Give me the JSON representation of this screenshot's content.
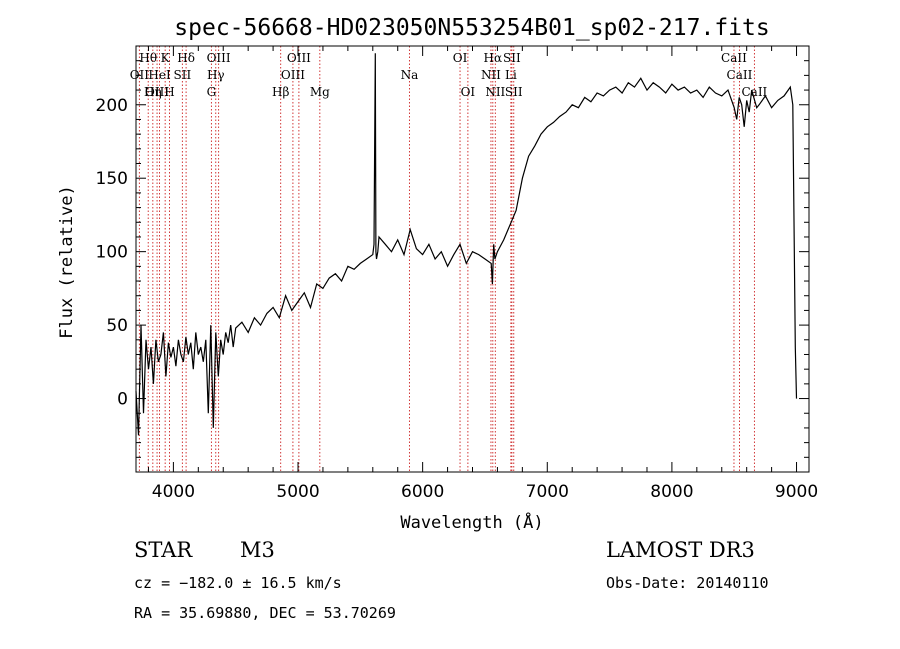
{
  "chart_data": {
    "type": "line",
    "title": "spec-56668-HD023050N553254B01_sp02-217.fits",
    "xlabel": "Wavelength (Å)",
    "ylabel": "Flux (relative)",
    "xlim": [
      3700,
      9100
    ],
    "ylim": [
      -50,
      240
    ],
    "xticks": [
      4000,
      5000,
      6000,
      7000,
      8000,
      9000
    ],
    "yticks": [
      0,
      50,
      100,
      150,
      200
    ],
    "series": [
      {
        "name": "flux",
        "x": [
          3700,
          3720,
          3740,
          3760,
          3780,
          3800,
          3820,
          3840,
          3860,
          3880,
          3900,
          3920,
          3940,
          3960,
          3980,
          4000,
          4020,
          4040,
          4060,
          4080,
          4100,
          4120,
          4140,
          4160,
          4180,
          4200,
          4220,
          4240,
          4260,
          4280,
          4300,
          4320,
          4340,
          4360,
          4380,
          4400,
          4420,
          4440,
          4460,
          4480,
          4500,
          4550,
          4600,
          4650,
          4700,
          4750,
          4800,
          4850,
          4900,
          4950,
          5000,
          5050,
          5100,
          5150,
          5200,
          5250,
          5300,
          5350,
          5400,
          5450,
          5500,
          5550,
          5600,
          5610,
          5620,
          5625,
          5630,
          5640,
          5650,
          5700,
          5750,
          5800,
          5850,
          5900,
          5950,
          6000,
          6050,
          6100,
          6150,
          6200,
          6250,
          6300,
          6350,
          6400,
          6450,
          6500,
          6550,
          6560,
          6570,
          6580,
          6600,
          6650,
          6700,
          6750,
          6800,
          6850,
          6900,
          6950,
          7000,
          7050,
          7100,
          7150,
          7200,
          7250,
          7300,
          7350,
          7400,
          7450,
          7500,
          7550,
          7600,
          7650,
          7700,
          7750,
          7800,
          7850,
          7900,
          7950,
          8000,
          8050,
          8100,
          8150,
          8200,
          8250,
          8300,
          8350,
          8400,
          8450,
          8500,
          8520,
          8540,
          8560,
          8580,
          8600,
          8620,
          8640,
          8660,
          8680,
          8700,
          8750,
          8800,
          8850,
          8900,
          8950,
          8970,
          8990,
          9000
        ],
        "y": [
          5,
          -25,
          50,
          -10,
          40,
          20,
          35,
          10,
          40,
          25,
          30,
          45,
          15,
          38,
          28,
          35,
          22,
          40,
          30,
          25,
          42,
          30,
          38,
          20,
          45,
          30,
          35,
          25,
          40,
          -10,
          50,
          -20,
          45,
          15,
          40,
          30,
          45,
          38,
          50,
          35,
          48,
          52,
          45,
          55,
          50,
          58,
          62,
          55,
          70,
          60,
          66,
          72,
          62,
          78,
          75,
          82,
          85,
          80,
          90,
          88,
          92,
          95,
          98,
          105,
          235,
          100,
          95,
          100,
          110,
          105,
          100,
          108,
          98,
          115,
          102,
          98,
          105,
          95,
          100,
          90,
          98,
          105,
          92,
          100,
          98,
          95,
          92,
          78,
          105,
          95,
          100,
          108,
          118,
          128,
          150,
          165,
          172,
          180,
          185,
          188,
          192,
          195,
          200,
          198,
          205,
          202,
          208,
          206,
          210,
          212,
          208,
          215,
          212,
          218,
          210,
          215,
          212,
          208,
          214,
          210,
          212,
          208,
          210,
          205,
          212,
          208,
          206,
          210,
          198,
          190,
          205,
          200,
          185,
          203,
          195,
          210,
          204,
          198,
          200,
          206,
          198,
          203,
          206,
          212,
          200,
          35,
          0
        ]
      }
    ],
    "spectral_lines": [
      {
        "label": "Hθ",
        "x": 3798,
        "row": 1
      },
      {
        "label": "OII",
        "x": 3727,
        "row": 2
      },
      {
        "label": "OIII",
        "x": 3869,
        "row": 3
      },
      {
        "label": "K",
        "x": 3934,
        "row": 1
      },
      {
        "label": "HeI",
        "x": 3889,
        "row": 2
      },
      {
        "label": "Hη",
        "x": 3835,
        "row": 3
      },
      {
        "label": "H",
        "x": 3969,
        "row": 3
      },
      {
        "label": "Hδ",
        "x": 4102,
        "row": 1
      },
      {
        "label": "SII",
        "x": 4072,
        "row": 2
      },
      {
        "label": "OIII",
        "x": 4363,
        "row": 1
      },
      {
        "label": "Hγ",
        "x": 4340,
        "row": 2
      },
      {
        "label": "G",
        "x": 4305,
        "row": 3
      },
      {
        "label": "Hβ",
        "x": 4861,
        "row": 3
      },
      {
        "label": "OIII",
        "x": 5007,
        "row": 1
      },
      {
        "label": "OIII",
        "x": 4959,
        "row": 2
      },
      {
        "label": "Mg",
        "x": 5175,
        "row": 3
      },
      {
        "label": "Na",
        "x": 5894,
        "row": 2
      },
      {
        "label": "OI",
        "x": 6300,
        "row": 1
      },
      {
        "label": "OI",
        "x": 6363,
        "row": 3
      },
      {
        "label": "Hα",
        "x": 6563,
        "row": 1
      },
      {
        "label": "NII",
        "x": 6548,
        "row": 2
      },
      {
        "label": "NII",
        "x": 6583,
        "row": 3
      },
      {
        "label": "SII",
        "x": 6716,
        "row": 1
      },
      {
        "label": "Li",
        "x": 6708,
        "row": 2
      },
      {
        "label": "SII",
        "x": 6731,
        "row": 3
      },
      {
        "label": "CaII",
        "x": 8498,
        "row": 1
      },
      {
        "label": "CaII",
        "x": 8542,
        "row": 2
      },
      {
        "label": "CaII",
        "x": 8662,
        "row": 3
      }
    ]
  },
  "info": {
    "object_type": "STAR",
    "subclass": "M3",
    "survey": "LAMOST DR3",
    "cz": "cz = −182.0 ± 16.5 km/s",
    "obs_date": "Obs-Date: 20140110",
    "coords": "RA =  35.69880, DEC =  53.70269"
  }
}
